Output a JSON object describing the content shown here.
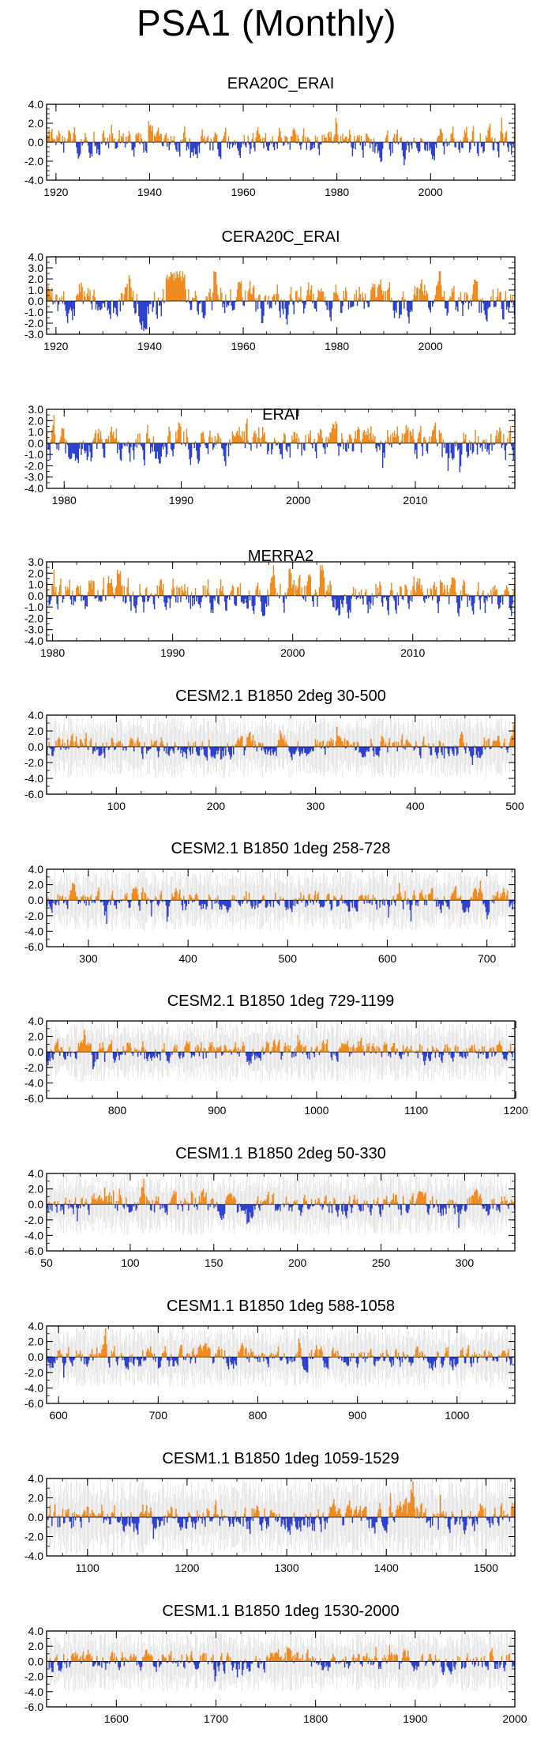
{
  "figure": {
    "title": "PSA1 (Monthly)"
  },
  "colors": {
    "positive": "#f08a1c",
    "negative": "#2b3fd0",
    "spread": "#c8c8c8",
    "zero_line": "#000000"
  },
  "chart_data": [
    {
      "type": "bar",
      "title": "ERA20C_ERAI",
      "xlim": [
        1918,
        2018
      ],
      "ylim": [
        -4,
        4
      ],
      "x_ticks": [
        1920,
        1940,
        1960,
        1980,
        2000
      ],
      "y_ticks": [
        4.0,
        2.0,
        0.0,
        -2.0,
        -4.0
      ],
      "x_minor_step": 5,
      "y_minor_step": 0.5,
      "has_spread": false,
      "amplitude": 1.0,
      "burst": null
    },
    {
      "type": "bar",
      "title": "CERA20C_ERAI",
      "xlim": [
        1918,
        2018
      ],
      "ylim": [
        -3,
        4
      ],
      "x_ticks": [
        1920,
        1940,
        1960,
        1980,
        2000
      ],
      "y_ticks": [
        4.0,
        3.0,
        2.0,
        1.0,
        0.0,
        -1.0,
        -2.0,
        -3.0
      ],
      "x_minor_step": 5,
      "y_minor_step": 0.5,
      "has_spread": false,
      "amplitude": 1.05,
      "burst": [
        1943.5,
        1947.5,
        2.6
      ]
    },
    {
      "type": "bar",
      "title": "ERAI",
      "xlim": [
        1978.5,
        2018.5
      ],
      "ylim": [
        -4,
        3
      ],
      "x_ticks": [
        1980,
        1990,
        2000,
        2010
      ],
      "y_ticks": [
        3.0,
        2.0,
        1.0,
        0.0,
        -1.0,
        -2.0,
        -3.0,
        -4.0
      ],
      "x_minor_step": 2,
      "y_minor_step": 0.5,
      "has_spread": false,
      "amplitude": 1.0,
      "burst": null
    },
    {
      "type": "bar",
      "title": "MERRA2",
      "xlim": [
        1979.5,
        2018.5
      ],
      "ylim": [
        -4,
        3
      ],
      "x_ticks": [
        1980,
        1990,
        2000,
        2010
      ],
      "y_ticks": [
        3.0,
        2.0,
        1.0,
        0.0,
        -1.0,
        -2.0,
        -3.0,
        -4.0
      ],
      "x_minor_step": 2,
      "y_minor_step": 0.5,
      "has_spread": false,
      "amplitude": 1.0,
      "burst": null
    },
    {
      "type": "bar",
      "title": "CESM2.1 B1850 2deg 30-500",
      "xlim": [
        30,
        500
      ],
      "ylim": [
        -6,
        4
      ],
      "x_ticks": [
        100,
        200,
        300,
        400,
        500
      ],
      "y_ticks": [
        4.0,
        2.0,
        0.0,
        -2.0,
        -4.0,
        -6.0
      ],
      "x_minor_step": 25,
      "y_minor_step": 1,
      "has_spread": true,
      "amplitude": 0.9,
      "burst": null
    },
    {
      "type": "bar",
      "title": "CESM2.1 B1850 1deg 258-728",
      "xlim": [
        258,
        728
      ],
      "ylim": [
        -6,
        4
      ],
      "x_ticks": [
        300,
        400,
        500,
        600,
        700
      ],
      "y_ticks": [
        4.0,
        2.0,
        0.0,
        -2.0,
        -4.0,
        -6.0
      ],
      "x_minor_step": 25,
      "y_minor_step": 1,
      "has_spread": true,
      "amplitude": 0.9,
      "burst": null
    },
    {
      "type": "bar",
      "title": "CESM2.1 B1850 1deg 729-1199",
      "xlim": [
        729,
        1199
      ],
      "ylim": [
        -6,
        4
      ],
      "x_ticks": [
        800,
        900,
        1000,
        1100,
        1200
      ],
      "y_ticks": [
        4.0,
        2.0,
        0.0,
        -2.0,
        -4.0,
        -6.0
      ],
      "x_minor_step": 25,
      "y_minor_step": 1,
      "has_spread": true,
      "amplitude": 0.9,
      "burst": null
    },
    {
      "type": "bar",
      "title": "CESM1.1 B1850 2deg 50-330",
      "xlim": [
        50,
        330
      ],
      "ylim": [
        -6,
        4
      ],
      "x_ticks": [
        50,
        100,
        150,
        200,
        250,
        300
      ],
      "y_ticks": [
        4.0,
        2.0,
        0.0,
        -2.0,
        -4.0,
        -6.0
      ],
      "x_minor_step": 10,
      "y_minor_step": 1,
      "has_spread": true,
      "amplitude": 0.9,
      "burst": null
    },
    {
      "type": "bar",
      "title": "CESM1.1 B1850 1deg 588-1058",
      "xlim": [
        588,
        1058
      ],
      "ylim": [
        -6,
        4
      ],
      "x_ticks": [
        600,
        700,
        800,
        900,
        1000
      ],
      "y_ticks": [
        4.0,
        2.0,
        0.0,
        -2.0,
        -4.0,
        -6.0
      ],
      "x_minor_step": 25,
      "y_minor_step": 1,
      "has_spread": true,
      "amplitude": 0.9,
      "burst": null
    },
    {
      "type": "bar",
      "title": "CESM1.1 B1850 1deg 1059-1529",
      "xlim": [
        1059,
        1529
      ],
      "ylim": [
        -4,
        4
      ],
      "x_ticks": [
        1100,
        1200,
        1300,
        1400,
        1500
      ],
      "y_ticks": [
        4.0,
        2.0,
        0.0,
        -2.0,
        -4.0
      ],
      "x_minor_step": 25,
      "y_minor_step": 1,
      "has_spread": true,
      "amplitude": 0.95,
      "burst": null
    },
    {
      "type": "bar",
      "title": "CESM1.1 B1850 1deg 1530-2000",
      "xlim": [
        1530,
        2000
      ],
      "ylim": [
        -6,
        4
      ],
      "x_ticks": [
        1600,
        1700,
        1800,
        1900,
        2000
      ],
      "y_ticks": [
        4.0,
        2.0,
        0.0,
        -2.0,
        -4.0,
        -6.0
      ],
      "x_minor_step": 25,
      "y_minor_step": 1,
      "has_spread": true,
      "amplitude": 0.9,
      "burst": null
    }
  ]
}
